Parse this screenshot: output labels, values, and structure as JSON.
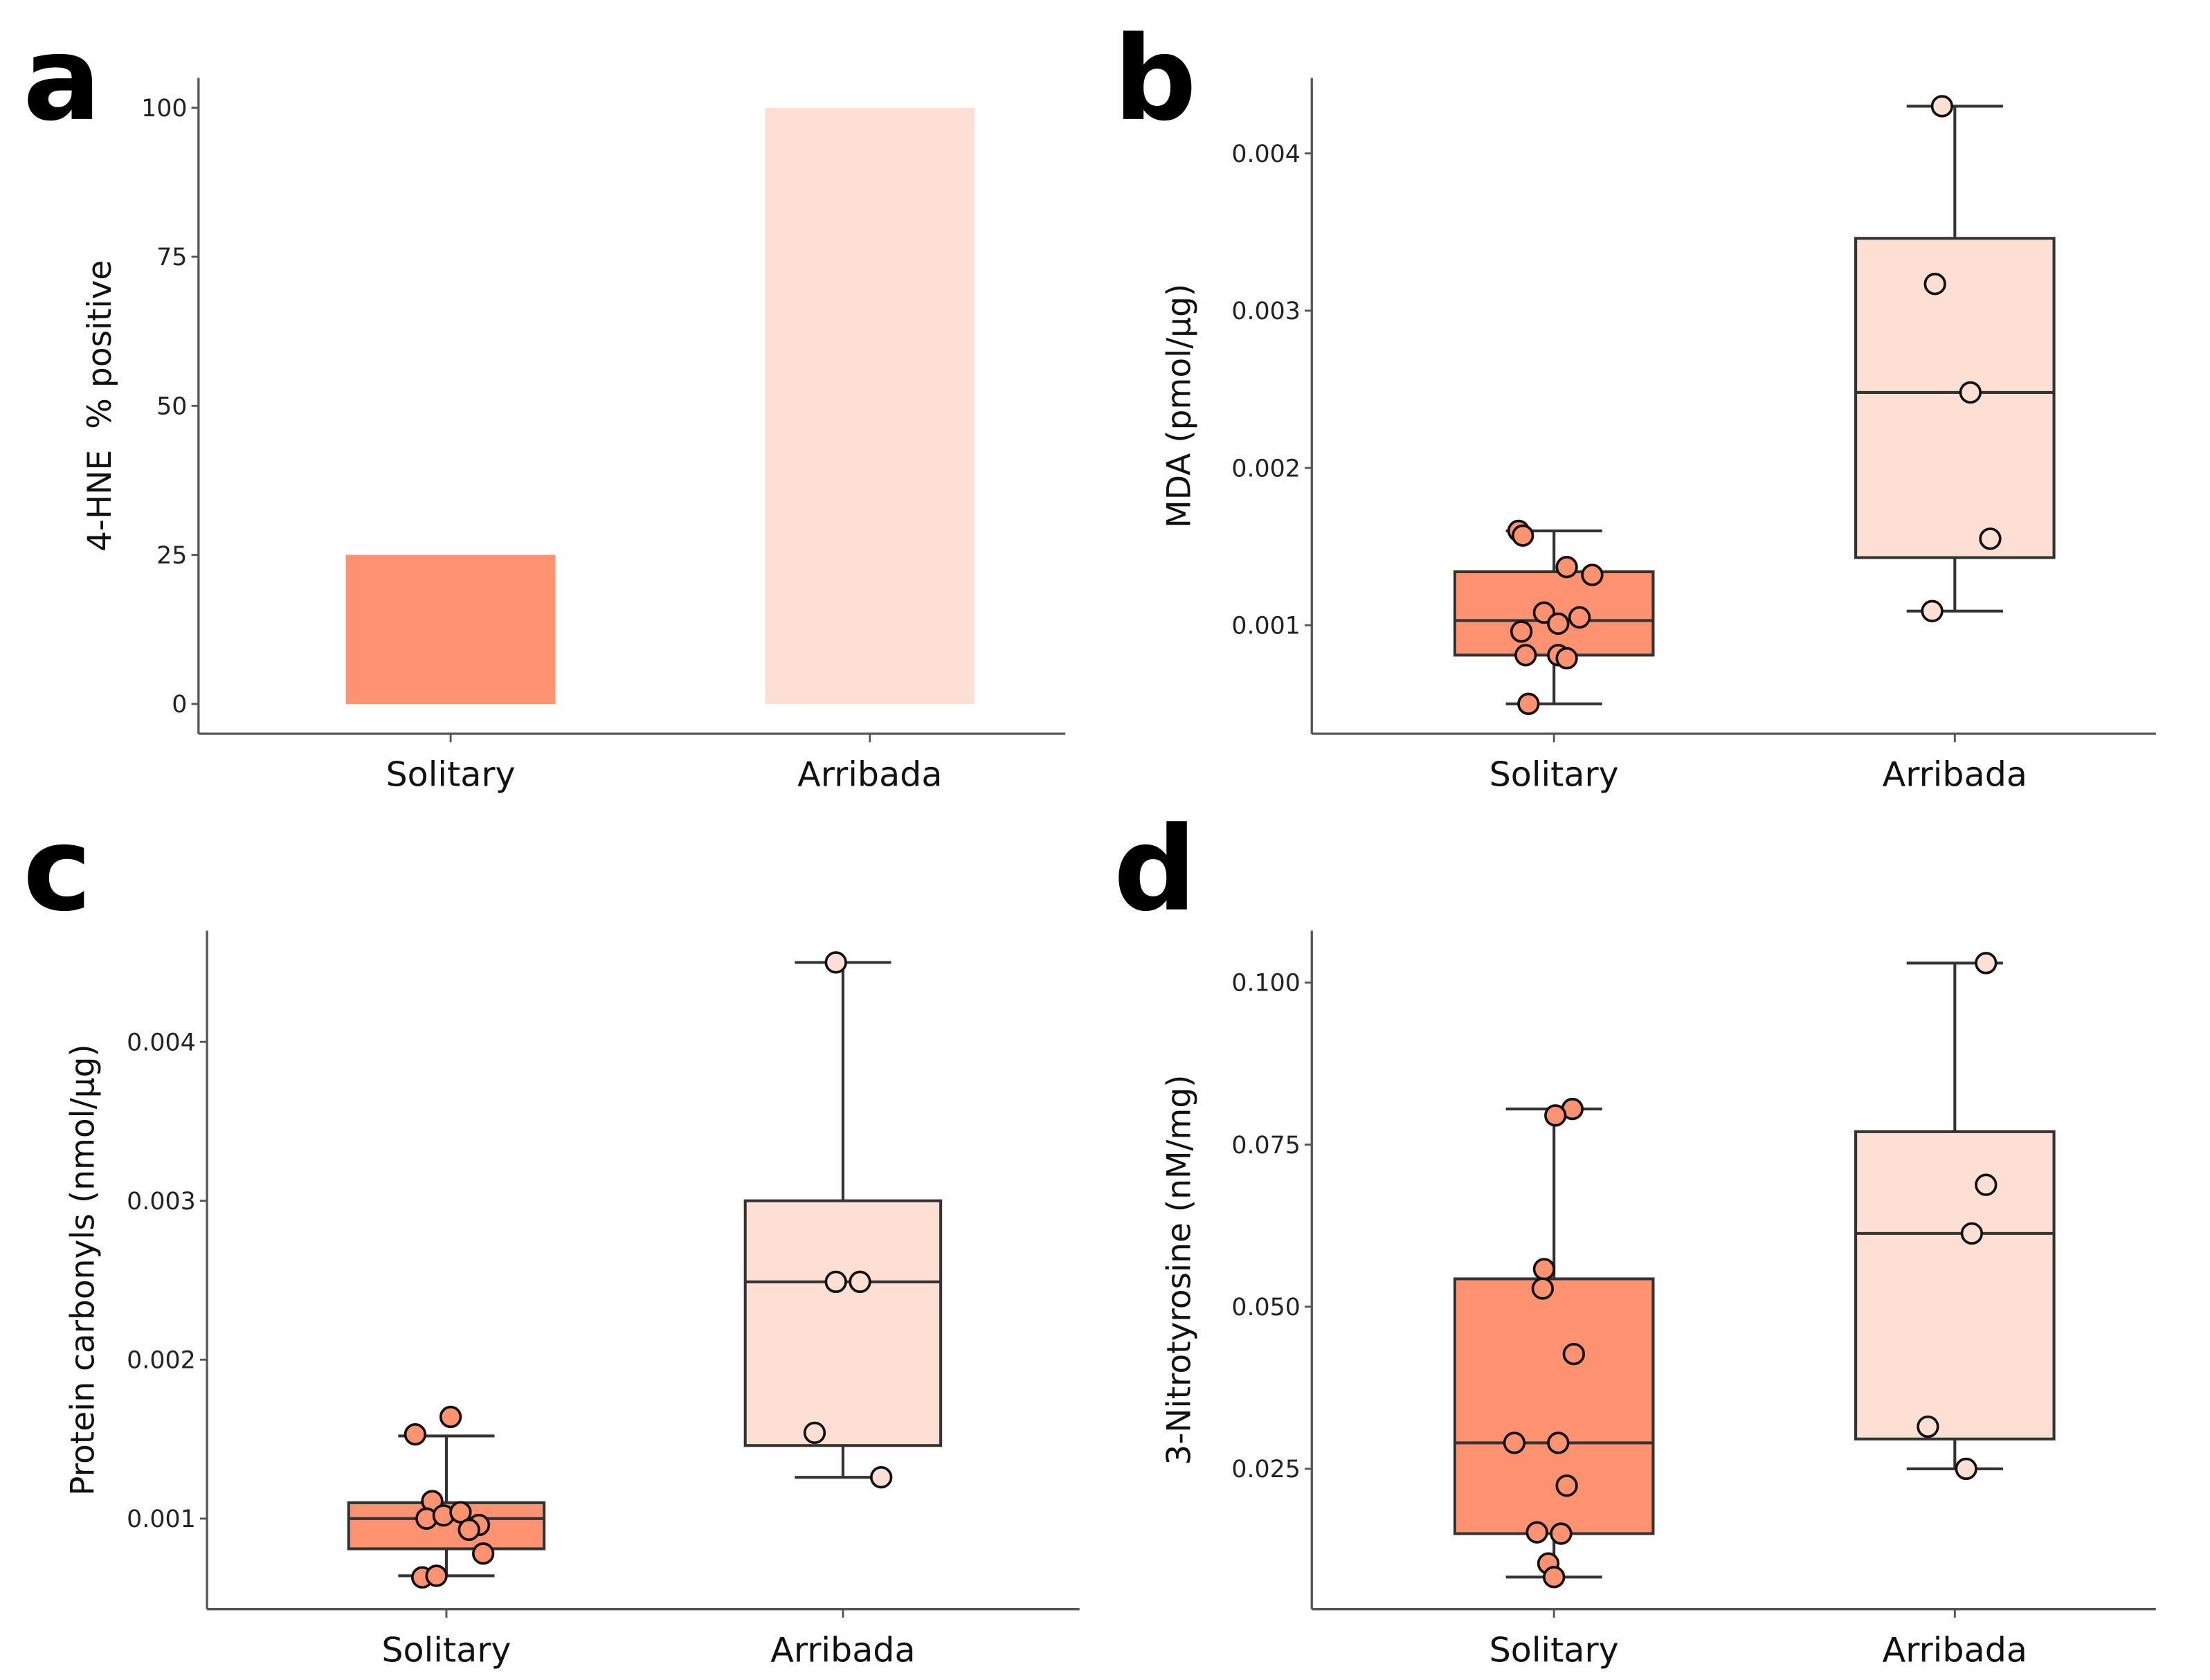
{
  "colors": {
    "solitary": "#FF9270",
    "arribada": "#FDE0D3",
    "stroke": "#333333"
  },
  "chart_data": [
    {
      "panel": "a",
      "type": "bar",
      "categories": [
        "Solitary",
        "Arribada"
      ],
      "values": [
        25,
        100
      ],
      "ylabel": "4-HNE  % positive",
      "yticks": [
        0,
        25,
        50,
        75,
        100
      ],
      "ytick_labels": [
        "0",
        "25",
        "50",
        "75",
        "100"
      ],
      "ylim": [
        -5,
        105
      ]
    },
    {
      "panel": "b",
      "type": "box",
      "categories": [
        "Solitary",
        "Arribada"
      ],
      "ylabel": "MDA (pmol/µg)",
      "yticks": [
        0.001,
        0.002,
        0.003,
        0.004
      ],
      "ytick_labels": [
        "0.001",
        "0.002",
        "0.003",
        "0.004"
      ],
      "ylim": [
        0.00031,
        0.00448
      ],
      "boxes": [
        {
          "min": 0.0005,
          "q1": 0.00081,
          "median": 0.00103,
          "q3": 0.00134,
          "max": 0.0016,
          "points": [
            0.0016,
            0.00157,
            0.00137,
            0.00132,
            0.00108,
            0.00101,
            0.00105,
            0.00096,
            0.00081,
            0.00081,
            0.00079,
            0.0005
          ]
        },
        {
          "min": 0.00109,
          "q1": 0.00143,
          "median": 0.00248,
          "q3": 0.00346,
          "max": 0.0043,
          "points": [
            0.0043,
            0.00317,
            0.00248,
            0.00155,
            0.00109
          ]
        }
      ]
    },
    {
      "panel": "c",
      "type": "box",
      "categories": [
        "Solitary",
        "Arribada"
      ],
      "ylabel": "Protein carbonyls (nmol/µg)",
      "yticks": [
        0.001,
        0.002,
        0.003,
        0.004
      ],
      "ytick_labels": [
        "0.001",
        "0.002",
        "0.003",
        "0.004"
      ],
      "ylim": [
        0.00043,
        0.0047
      ],
      "boxes": [
        {
          "min": 0.00064,
          "q1": 0.00081,
          "median": 0.001,
          "q3": 0.0011,
          "max": 0.00152,
          "points": [
            0.00164,
            0.00153,
            0.00111,
            0.001,
            0.00102,
            0.00104,
            0.00096,
            0.00093,
            0.00078,
            0.00063,
            0.00064
          ]
        },
        {
          "min": 0.00126,
          "q1": 0.00146,
          "median": 0.00249,
          "q3": 0.003,
          "max": 0.0045,
          "points": [
            0.0045,
            0.00249,
            0.00249,
            0.00154,
            0.00126
          ]
        }
      ]
    },
    {
      "panel": "d",
      "type": "box",
      "categories": [
        "Solitary",
        "Arribada"
      ],
      "ylabel": "3-Nitrotyrosine (nM/mg)",
      "yticks": [
        0.025,
        0.05,
        0.075,
        0.1
      ],
      "ytick_labels": [
        "0.025",
        "0.050",
        "0.075",
        "0.100"
      ],
      "ylim": [
        0.00335,
        0.108
      ],
      "boxes": [
        {
          "min": 0.0083,
          "q1": 0.015,
          "median": 0.029,
          "q3": 0.0543,
          "max": 0.0805,
          "points": [
            0.0805,
            0.0795,
            0.0558,
            0.0528,
            0.0427,
            0.029,
            0.029,
            0.0224,
            0.0152,
            0.015,
            0.0104,
            0.0083
          ]
        },
        {
          "min": 0.025,
          "q1": 0.0296,
          "median": 0.0613,
          "q3": 0.077,
          "max": 0.103,
          "points": [
            0.103,
            0.0688,
            0.0613,
            0.0315,
            0.025
          ]
        }
      ]
    }
  ]
}
